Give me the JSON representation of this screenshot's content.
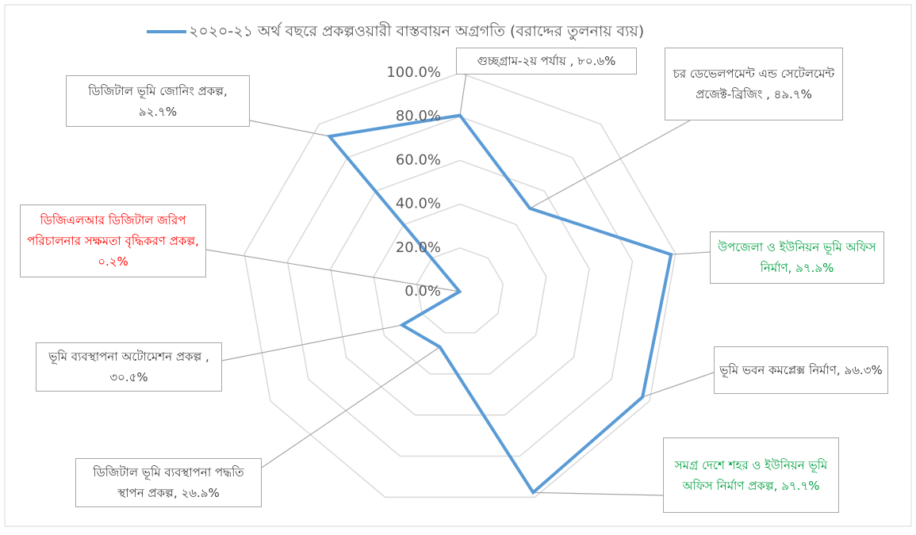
{
  "chart_data": {
    "type": "radar",
    "categories": [
      "গুচ্ছগ্রাম-২য় পর্যায় ,",
      "চর ডেভেলপমেন্ট এন্ড সেটেলমেন্ট প্রজেক্ট-ব্রিজিং ,",
      "উপজেলা ও ইউনিয়ন ভূমি অফিস নির্মাণ,",
      "ভূমি ভবন কমপ্লেক্স নির্মাণ,",
      "সমগ্র দেশে শহর ও ইউনিয়ন ভূমি অফিস নির্মাণ প্রকল্প,",
      "ডিজিটাল ভূমি ব্যবস্থাপনা পদ্ধতি স্থাপন প্রকল্প,",
      "ভূমি ব্যবস্থাপনা অটোমেশন প্রকল্প ,",
      "ডিজিএলআর ডিজিটাল জরিপ পরিচালনার সক্ষমতা বৃদ্ধিকরণ প্রকল্প,",
      "ডিজিটাল ভূমি জোনিং প্রকল্প,"
    ],
    "series": [
      {
        "name": "২০২০-২১ অর্থ বছরে প্রকল্পওয়ারী বাস্তবায়ন অগ্রগতি (বরাদ্দের তুলনায় ব্যয়)",
        "color": "#5b9bd5",
        "values": [
          80.6,
          49.7,
          97.9,
          96.3,
          97.7,
          26.9,
          30.5,
          0.2,
          92.7
        ],
        "value_labels": [
          "৮০.৬%",
          "৪৯.৭%",
          "৯৭.৯%",
          "৯৬.৩%",
          "৯৭.৭%",
          "২৬.৯%",
          "৩০.৫%",
          "০.২%",
          "৯২.৭%"
        ]
      }
    ],
    "label_colors": [
      "#404040",
      "#404040",
      "#00a040",
      "#404040",
      "#00a040",
      "#404040",
      "#404040",
      "#ff0000",
      "#404040"
    ],
    "ylim": [
      0,
      100
    ],
    "yticks": [
      {
        "value": 0,
        "label": "0.0%"
      },
      {
        "value": 20,
        "label": "20.0%"
      },
      {
        "value": 40,
        "label": "40.0%"
      },
      {
        "value": 60,
        "label": "60.0%"
      },
      {
        "value": 80,
        "label": "80.0%"
      },
      {
        "value": 100,
        "label": "100.0%"
      }
    ],
    "grid": true,
    "legend": "top"
  }
}
